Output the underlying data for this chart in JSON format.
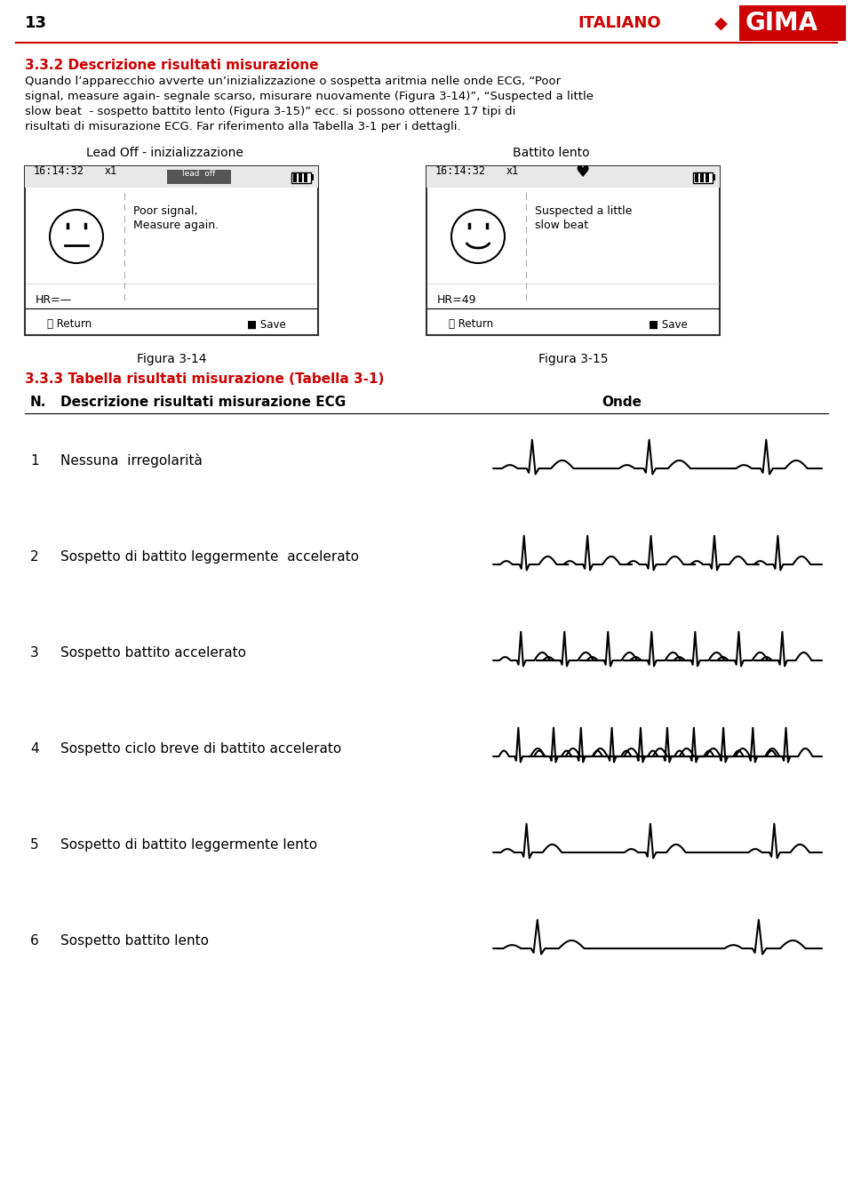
{
  "page_number": "13",
  "header_text": "ITALIANO",
  "brand": "GIMA",
  "section_title": "3.3.2 Descrizione risultati misurazione",
  "body_text_lines": [
    "Quando l’apparecchio avverte un’inizializzazione o sospetta aritmia nelle onde ECG, “Poor",
    "signal, measure again- segnale scarso, misurare nuovamente (Figura 3-14)”, “Suspected a little",
    "slow beat  - sospetto battito lento (Figura 3-15)” ecc. si possono ottenere 17 tipi di",
    "risultati di misurazione ECG. Far riferimento alla Tabella 3-1 per i dettagli."
  ],
  "fig14_title": "Lead Off - inizializzazione",
  "fig15_title": "Battito lento",
  "fig14_caption": "Figura 3-14",
  "fig15_caption": "Figura 3-15",
  "fig14_time": "16:14:32",
  "fig14_zoom": "x1",
  "fig14_label": "lead  off",
  "fig14_text1": "Poor signal,",
  "fig14_text2": "Measure again.",
  "fig14_hr": "HR=—",
  "fig15_time": "16:14:32",
  "fig15_zoom": "x1",
  "fig15_hr": "HR=49",
  "fig15_text1": "Suspected a little",
  "fig15_text2": "slow beat",
  "section2_title": "3.3.3 Tabella risultati misurazione (Tabella 3-1)",
  "table_col1": "N.",
  "table_col2": "Descrizione risultati misurazione ECG",
  "table_col3": "Onde",
  "table_rows": [
    {
      "n": "1",
      "desc": "Nessuna  irregolarità"
    },
    {
      "n": "2",
      "desc": "Sospetto di battito leggermente  accelerato"
    },
    {
      "n": "3",
      "desc": "Sospetto battito accelerato"
    },
    {
      "n": "4",
      "desc": "Sospetto ciclo breve di battito accelerato"
    },
    {
      "n": "5",
      "desc": "Sospetto di battito leggermente lento"
    },
    {
      "n": "6",
      "desc": "Sospetto battito lento"
    }
  ],
  "red_color": "#CC0000",
  "black_color": "#000000",
  "bg_color": "#FFFFFF"
}
